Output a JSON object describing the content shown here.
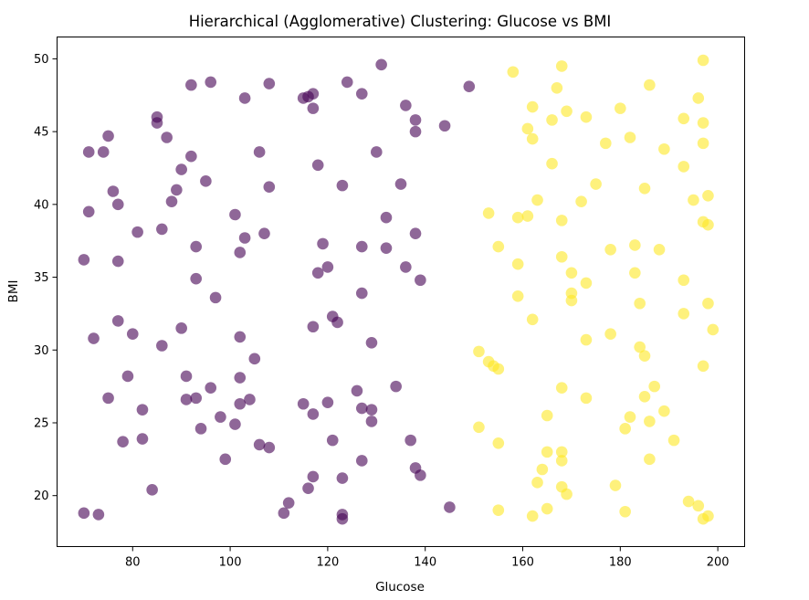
{
  "chart_data": {
    "type": "scatter",
    "title": "Hierarchical (Agglomerative) Clustering: Glucose vs BMI",
    "xlabel": "Glucose",
    "ylabel": "BMI",
    "xlim": [
      64.5,
      205.5
    ],
    "ylim": [
      16.5,
      51.5
    ],
    "xticks": [
      80,
      100,
      120,
      140,
      160,
      180,
      200
    ],
    "yticks": [
      20,
      25,
      30,
      35,
      40,
      45,
      50
    ],
    "grid": false,
    "legend": "none",
    "series": [
      {
        "color": "#440154",
        "points": [
          [
            70,
            36.2
          ],
          [
            70,
            18.8
          ],
          [
            71,
            43.6
          ],
          [
            71,
            39.5
          ],
          [
            72,
            30.8
          ],
          [
            73,
            18.7
          ],
          [
            74,
            43.6
          ],
          [
            75,
            44.7
          ],
          [
            75,
            26.7
          ],
          [
            76,
            40.9
          ],
          [
            77,
            40.0
          ],
          [
            77,
            36.1
          ],
          [
            77,
            32.0
          ],
          [
            78,
            23.7
          ],
          [
            79,
            28.2
          ],
          [
            80,
            31.1
          ],
          [
            81,
            38.1
          ],
          [
            82,
            25.9
          ],
          [
            82,
            23.9
          ],
          [
            84,
            20.4
          ],
          [
            85,
            46.0
          ],
          [
            85,
            45.6
          ],
          [
            86,
            38.3
          ],
          [
            86,
            30.3
          ],
          [
            87,
            44.6
          ],
          [
            88,
            40.2
          ],
          [
            89,
            41.0
          ],
          [
            90,
            42.4
          ],
          [
            90,
            31.5
          ],
          [
            91,
            28.2
          ],
          [
            91,
            26.6
          ],
          [
            92,
            48.2
          ],
          [
            92,
            43.3
          ],
          [
            93,
            37.1
          ],
          [
            93,
            34.9
          ],
          [
            93,
            26.7
          ],
          [
            94,
            24.6
          ],
          [
            95,
            41.6
          ],
          [
            96,
            48.4
          ],
          [
            96,
            27.4
          ],
          [
            97,
            33.6
          ],
          [
            98,
            25.4
          ],
          [
            99,
            22.5
          ],
          [
            101,
            39.3
          ],
          [
            101,
            24.9
          ],
          [
            102,
            36.7
          ],
          [
            102,
            30.9
          ],
          [
            102,
            28.1
          ],
          [
            102,
            26.3
          ],
          [
            103,
            47.3
          ],
          [
            103,
            37.7
          ],
          [
            104,
            26.6
          ],
          [
            105,
            29.4
          ],
          [
            106,
            43.6
          ],
          [
            106,
            23.5
          ],
          [
            107,
            38.0
          ],
          [
            108,
            48.3
          ],
          [
            108,
            41.2
          ],
          [
            108,
            23.3
          ],
          [
            111,
            18.8
          ],
          [
            112,
            19.5
          ],
          [
            115,
            47.3
          ],
          [
            115,
            26.3
          ],
          [
            116,
            47.4
          ],
          [
            116,
            20.5
          ],
          [
            117,
            47.6
          ],
          [
            117,
            46.6
          ],
          [
            117,
            31.6
          ],
          [
            117,
            25.6
          ],
          [
            117,
            21.3
          ],
          [
            118,
            42.7
          ],
          [
            118,
            35.3
          ],
          [
            119,
            37.3
          ],
          [
            120,
            35.7
          ],
          [
            120,
            26.4
          ],
          [
            121,
            32.3
          ],
          [
            121,
            23.8
          ],
          [
            122,
            31.9
          ],
          [
            123,
            41.3
          ],
          [
            123,
            21.2
          ],
          [
            123,
            18.7
          ],
          [
            123,
            18.4
          ],
          [
            124,
            48.4
          ],
          [
            126,
            27.2
          ],
          [
            127,
            47.6
          ],
          [
            127,
            37.1
          ],
          [
            127,
            33.9
          ],
          [
            127,
            26.0
          ],
          [
            127,
            22.4
          ],
          [
            129,
            30.5
          ],
          [
            129,
            25.9
          ],
          [
            129,
            25.1
          ],
          [
            130,
            43.6
          ],
          [
            131,
            49.6
          ],
          [
            132,
            39.1
          ],
          [
            132,
            37.0
          ],
          [
            134,
            27.5
          ],
          [
            135,
            41.4
          ],
          [
            136,
            46.8
          ],
          [
            136,
            35.7
          ],
          [
            137,
            23.8
          ],
          [
            138,
            45.8
          ],
          [
            138,
            45.0
          ],
          [
            138,
            38.0
          ],
          [
            138,
            21.9
          ],
          [
            139,
            34.8
          ],
          [
            139,
            21.4
          ],
          [
            144,
            45.4
          ],
          [
            145,
            19.2
          ],
          [
            149,
            48.1
          ]
        ]
      },
      {
        "color": "#fde725",
        "points": [
          [
            151,
            29.9
          ],
          [
            151,
            24.7
          ],
          [
            153,
            39.4
          ],
          [
            153,
            29.2
          ],
          [
            154,
            28.9
          ],
          [
            155,
            37.1
          ],
          [
            155,
            28.7
          ],
          [
            155,
            23.6
          ],
          [
            155,
            19.0
          ],
          [
            158,
            49.1
          ],
          [
            159,
            39.1
          ],
          [
            159,
            35.9
          ],
          [
            159,
            33.7
          ],
          [
            161,
            45.2
          ],
          [
            161,
            39.2
          ],
          [
            162,
            46.7
          ],
          [
            162,
            44.5
          ],
          [
            162,
            32.1
          ],
          [
            162,
            18.6
          ],
          [
            163,
            40.3
          ],
          [
            163,
            20.9
          ],
          [
            164,
            21.8
          ],
          [
            165,
            25.5
          ],
          [
            165,
            23.0
          ],
          [
            165,
            19.1
          ],
          [
            166,
            45.8
          ],
          [
            166,
            42.8
          ],
          [
            167,
            48.0
          ],
          [
            168,
            49.5
          ],
          [
            168,
            38.9
          ],
          [
            168,
            36.4
          ],
          [
            168,
            27.4
          ],
          [
            168,
            23.0
          ],
          [
            168,
            22.4
          ],
          [
            168,
            20.6
          ],
          [
            169,
            46.4
          ],
          [
            169,
            20.1
          ],
          [
            170,
            35.3
          ],
          [
            170,
            33.9
          ],
          [
            170,
            33.4
          ],
          [
            172,
            40.2
          ],
          [
            173,
            46.0
          ],
          [
            173,
            34.6
          ],
          [
            173,
            30.7
          ],
          [
            173,
            26.7
          ],
          [
            175,
            41.4
          ],
          [
            177,
            44.2
          ],
          [
            178,
            36.9
          ],
          [
            178,
            31.1
          ],
          [
            179,
            20.7
          ],
          [
            180,
            46.6
          ],
          [
            181,
            24.6
          ],
          [
            181,
            18.9
          ],
          [
            182,
            44.6
          ],
          [
            182,
            25.4
          ],
          [
            183,
            37.2
          ],
          [
            183,
            35.3
          ],
          [
            184,
            33.2
          ],
          [
            184,
            30.2
          ],
          [
            185,
            41.1
          ],
          [
            185,
            29.6
          ],
          [
            185,
            26.8
          ],
          [
            186,
            48.2
          ],
          [
            186,
            25.1
          ],
          [
            186,
            22.5
          ],
          [
            187,
            27.5
          ],
          [
            188,
            36.9
          ],
          [
            189,
            43.8
          ],
          [
            189,
            25.8
          ],
          [
            191,
            23.8
          ],
          [
            193,
            45.9
          ],
          [
            193,
            42.6
          ],
          [
            193,
            34.8
          ],
          [
            193,
            32.5
          ],
          [
            194,
            19.6
          ],
          [
            195,
            40.3
          ],
          [
            196,
            47.3
          ],
          [
            196,
            19.3
          ],
          [
            197,
            49.9
          ],
          [
            197,
            45.6
          ],
          [
            197,
            44.2
          ],
          [
            197,
            38.8
          ],
          [
            197,
            28.9
          ],
          [
            197,
            18.4
          ],
          [
            198,
            40.6
          ],
          [
            198,
            38.6
          ],
          [
            198,
            33.2
          ],
          [
            198,
            18.6
          ],
          [
            199,
            31.4
          ]
        ]
      }
    ]
  }
}
